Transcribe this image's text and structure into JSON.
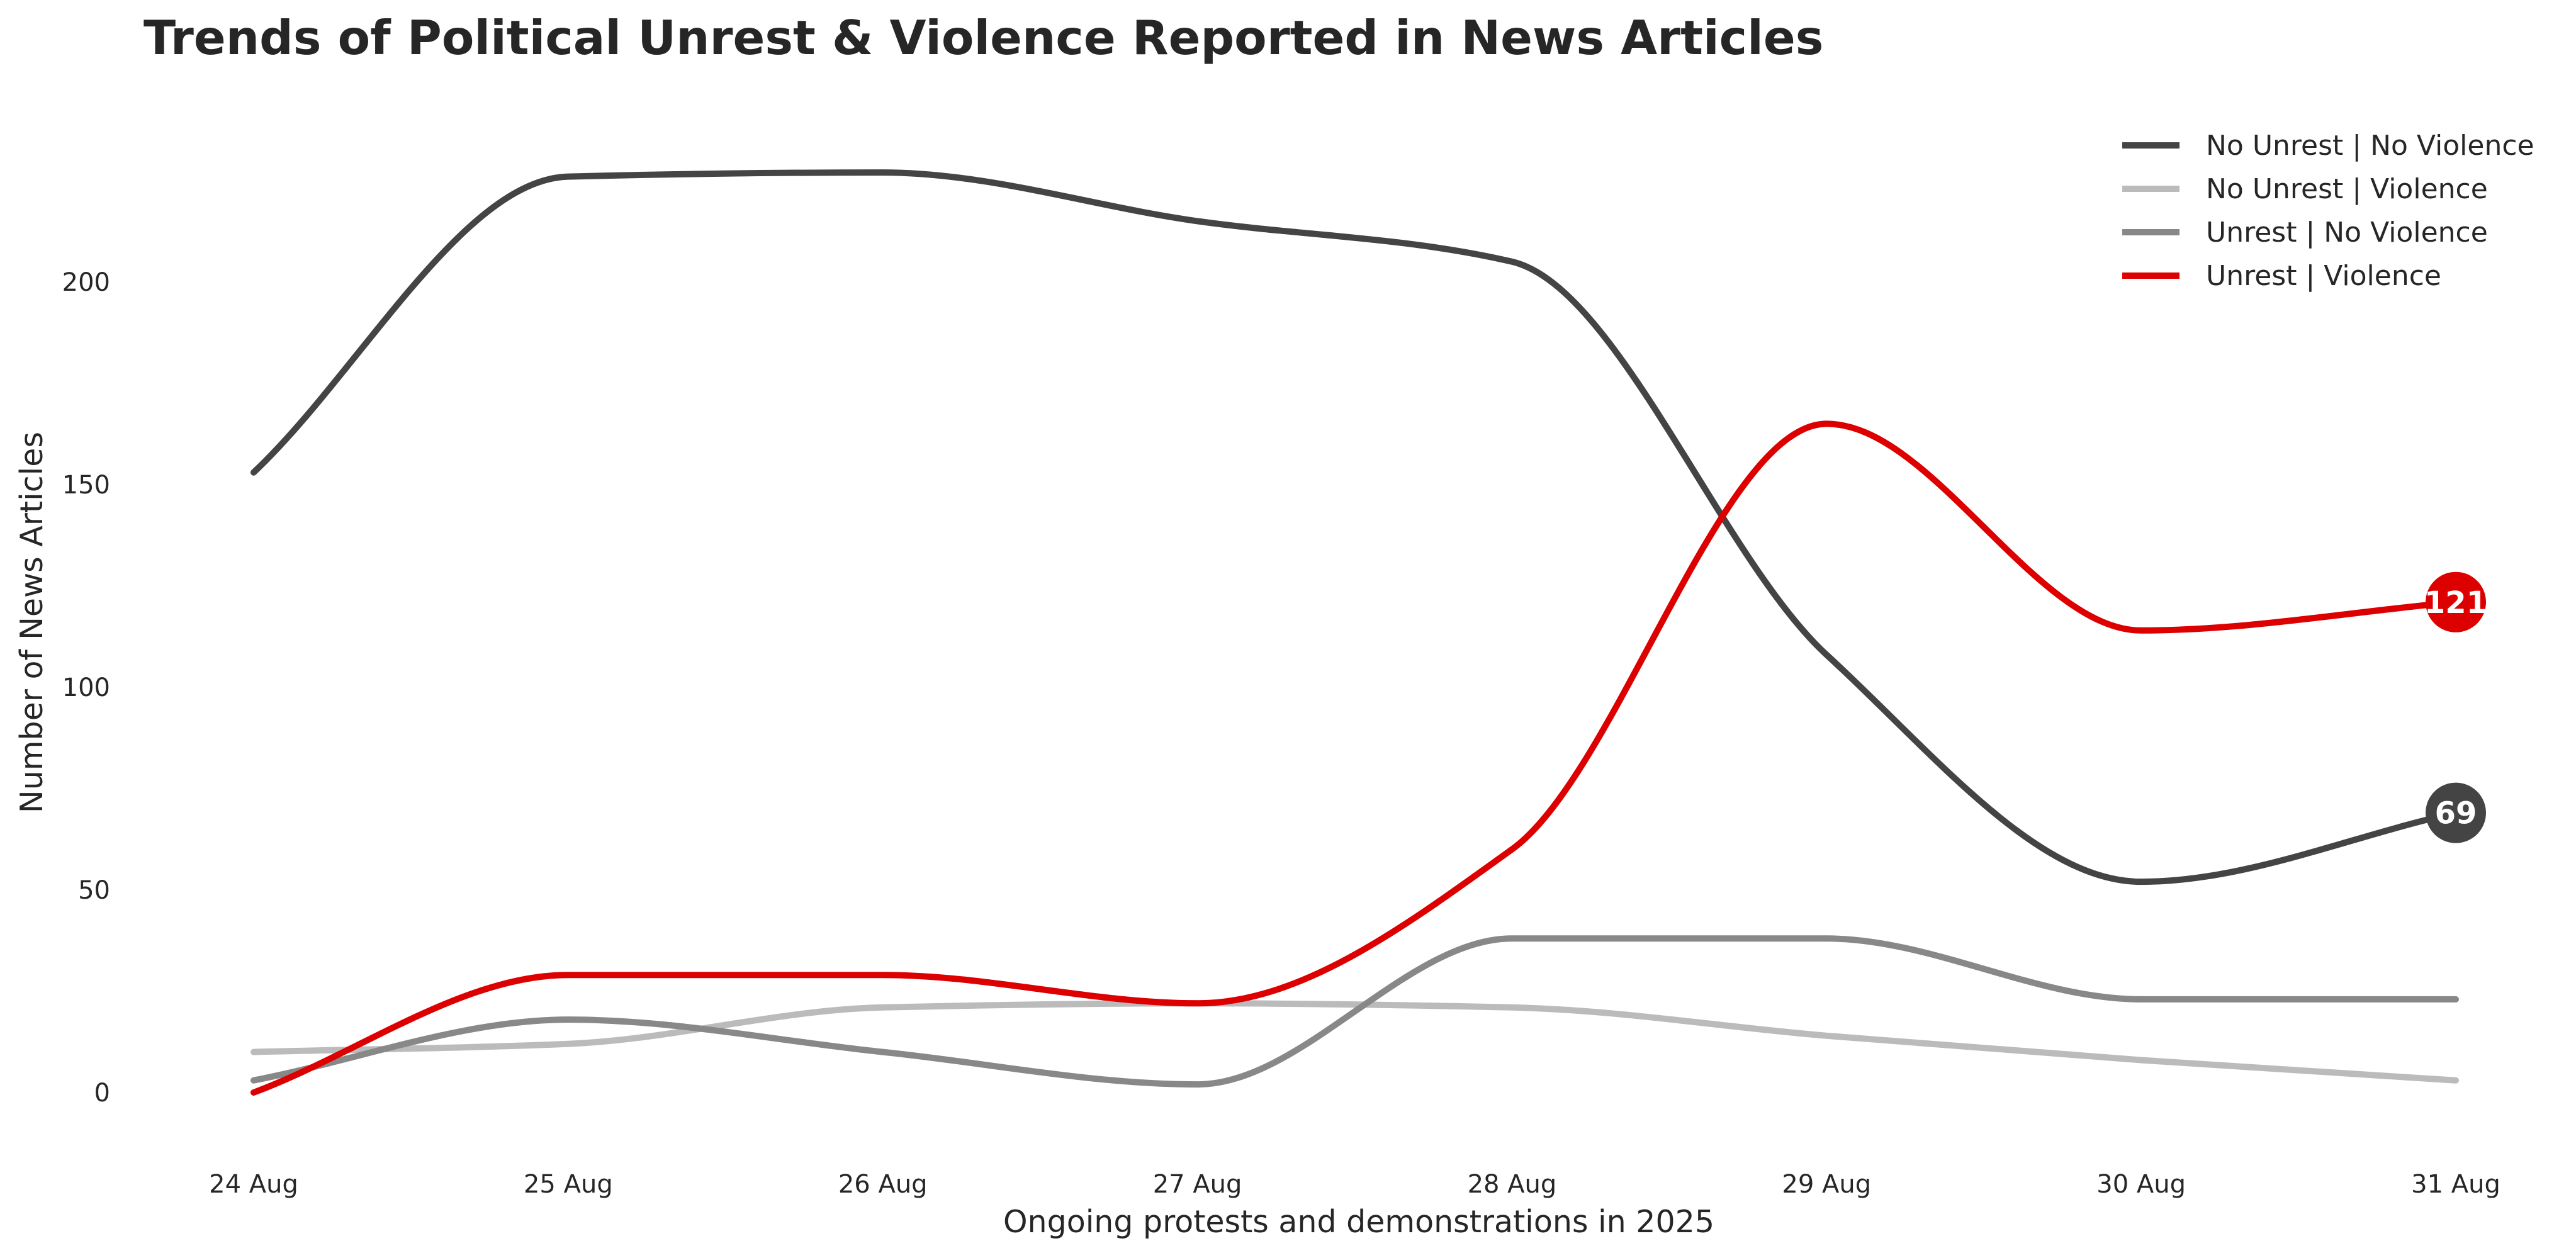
{
  "chart_data": {
    "type": "line",
    "title": "Trends of Political Unrest & Violence Reported in News Articles",
    "xlabel": "Ongoing protests and demonstrations in 2025",
    "ylabel": "Number of News Articles",
    "categories": [
      "24 Aug",
      "25 Aug",
      "26 Aug",
      "27 Aug",
      "28 Aug",
      "29 Aug",
      "30 Aug",
      "31 Aug"
    ],
    "ylim": [
      -15,
      245
    ],
    "yticks": [
      0,
      50,
      100,
      150,
      200
    ],
    "grid": false,
    "smooth": true,
    "legend_position": "top-right",
    "series": [
      {
        "name": "No Unrest | No Violence",
        "color": "#444444",
        "values": [
          153,
          226,
          227,
          215,
          205,
          108,
          52,
          69
        ],
        "end_label": "69"
      },
      {
        "name": "No Unrest | Violence",
        "color": "#bbbbbb",
        "values": [
          10,
          12,
          21,
          22,
          21,
          14,
          8,
          3
        ]
      },
      {
        "name": "Unrest | No Violence",
        "color": "#888888",
        "values": [
          3,
          18,
          10,
          2,
          38,
          38,
          23,
          23
        ]
      },
      {
        "name": "Unrest | Violence",
        "color": "#dd0000",
        "values": [
          0,
          29,
          29,
          22,
          60,
          165,
          114,
          121
        ],
        "end_label": "121"
      }
    ]
  }
}
